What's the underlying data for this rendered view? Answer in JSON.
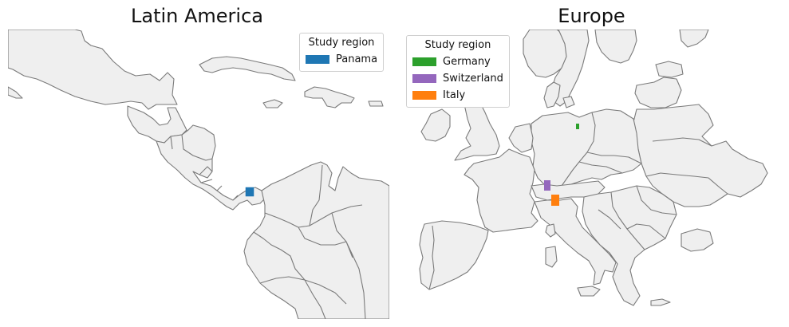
{
  "panels": [
    {
      "title": "Latin America",
      "legend": {
        "title": "Study region",
        "entries": [
          {
            "label": "Panama",
            "color": "#1f77b4"
          }
        ]
      }
    },
    {
      "title": "Europe",
      "legend": {
        "title": "Study region",
        "entries": [
          {
            "label": "Germany",
            "color": "#2ca02c"
          },
          {
            "label": "Switzerland",
            "color": "#9467bd"
          },
          {
            "label": "Italy",
            "color": "#ff7f0e"
          }
        ]
      }
    }
  ],
  "colors": {
    "land": "#efefef",
    "border": "#7a7a7a"
  }
}
